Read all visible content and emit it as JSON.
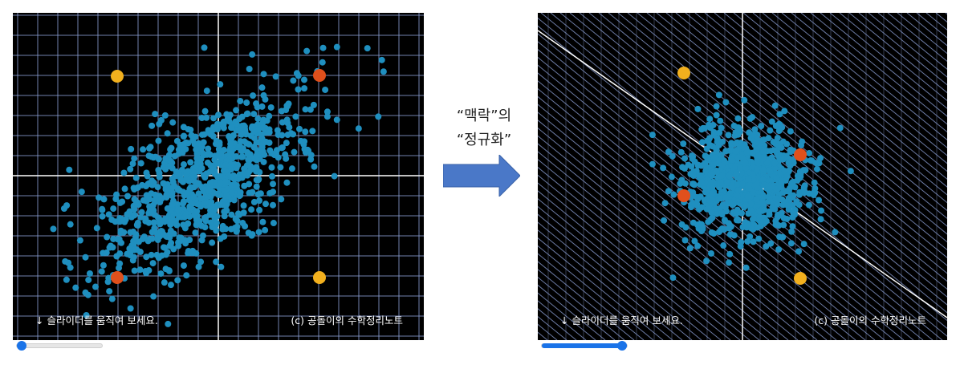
{
  "caption": {
    "line1": "“맥락”의",
    "line2": "“정규화”"
  },
  "panels": [
    {
      "hint": "↓ 슬라이더를 움직여 보세요.",
      "credit": "(c) 공돌이의 수학정리노트",
      "slider_value": 0.0
    },
    {
      "hint": "↓ 슬라이더를 움직여 보세요.",
      "credit": "(c) 공돌이의 수학정리노트",
      "slider_value": 1.0
    }
  ],
  "colors": {
    "background": "#000000",
    "grid": "#8fa3d9",
    "axis": "#ffffff",
    "points": "#1f8fbf",
    "marker_orange": "#e0501c",
    "marker_yellow": "#f2b01e",
    "arrow": "#4a78c8",
    "slider": "#1a73e8"
  }
}
